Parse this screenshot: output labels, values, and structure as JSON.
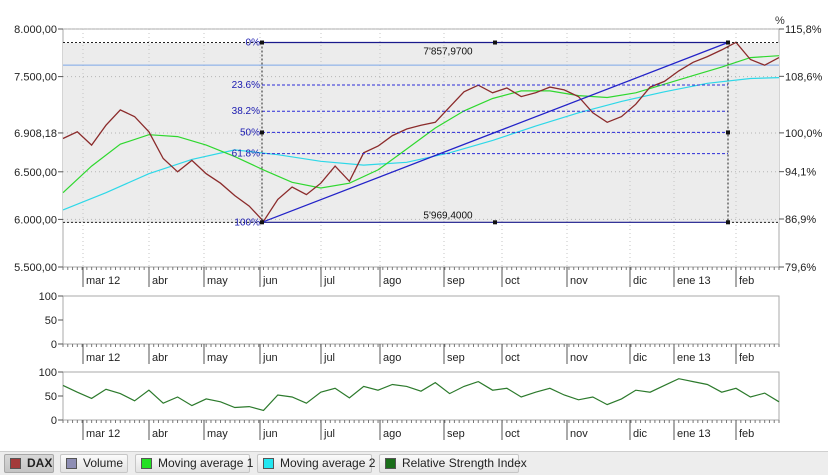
{
  "chart_data": {
    "type": "line",
    "title": "",
    "x_ticks": [
      "mar 12",
      "abr",
      "may",
      "jun",
      "jul",
      "ago",
      "sep",
      "oct",
      "nov",
      "dic",
      "ene 13",
      "feb"
    ],
    "main_panel": {
      "y_left_ticks": [
        "8.000,00",
        "7.500,00",
        "6.908,18",
        "6.500,00",
        "6.000,00",
        "5.500,00"
      ],
      "y_left_values": [
        8000,
        7500,
        6908.18,
        6500,
        6000,
        5500
      ],
      "y_right_unit": "%",
      "y_right_ticks": [
        "115,8%",
        "108,6%",
        "100,0%",
        "94,1%",
        "86,9%",
        "79,6%"
      ],
      "y_right_values": [
        115.8,
        108.6,
        100.0,
        94.1,
        86.9,
        79.6
      ],
      "ylim": [
        5500,
        8000
      ],
      "reference_level": 7620,
      "grid": true,
      "fibonacci": {
        "high_label": "7'857,9700",
        "low_label": "5'969,4000",
        "high": 7857.97,
        "low": 5969.4,
        "levels": [
          {
            "label": "0%",
            "ratio": 0
          },
          {
            "label": "23.6%",
            "ratio": 0.236
          },
          {
            "label": "38.2%",
            "ratio": 0.382
          },
          {
            "label": "50%",
            "ratio": 0.5
          },
          {
            "label": "61.8%",
            "ratio": 0.618
          },
          {
            "label": "100%",
            "ratio": 1.0
          }
        ],
        "trendline": {
          "from": [
            "2012-06-04",
            5969.4
          ],
          "to": [
            "2013-01-25",
            7857.97
          ]
        }
      },
      "series": [
        {
          "name": "DAX",
          "color": "#8b2b2b",
          "t": [
            0,
            2,
            4,
            6,
            8,
            10,
            12,
            14,
            16,
            18,
            20,
            22,
            24,
            26,
            28,
            30,
            32,
            34,
            36,
            38,
            40,
            42,
            44,
            46,
            48,
            50,
            52,
            54,
            56,
            58,
            60,
            62,
            64,
            66,
            68,
            70,
            72,
            74,
            76,
            78,
            80,
            82,
            84,
            86,
            88,
            90,
            92,
            94,
            96,
            98,
            100
          ],
          "y": [
            6850,
            6920,
            6780,
            6990,
            7150,
            7080,
            6920,
            6640,
            6500,
            6620,
            6480,
            6380,
            6250,
            6140,
            5980,
            6210,
            6340,
            6260,
            6380,
            6560,
            6400,
            6700,
            6770,
            6880,
            6950,
            6990,
            7020,
            7180,
            7340,
            7410,
            7330,
            7380,
            7290,
            7330,
            7390,
            7360,
            7290,
            7120,
            7020,
            7080,
            7210,
            7390,
            7450,
            7560,
            7650,
            7710,
            7780,
            7860,
            7680,
            7620,
            7700
          ]
        },
        {
          "name": "Moving average 1",
          "color": "#2fd82f",
          "t": [
            0,
            4,
            8,
            12,
            16,
            20,
            24,
            28,
            32,
            36,
            40,
            44,
            48,
            52,
            56,
            60,
            64,
            68,
            72,
            76,
            80,
            84,
            88,
            92,
            96,
            100
          ],
          "y": [
            6280,
            6560,
            6790,
            6890,
            6870,
            6780,
            6660,
            6520,
            6390,
            6330,
            6380,
            6520,
            6740,
            6960,
            7140,
            7270,
            7350,
            7350,
            7300,
            7280,
            7330,
            7420,
            7510,
            7600,
            7700,
            7720
          ]
        },
        {
          "name": "Moving average 2",
          "color": "#2ed8e8",
          "t": [
            0,
            6,
            12,
            18,
            24,
            30,
            36,
            42,
            48,
            54,
            60,
            66,
            72,
            78,
            84,
            90,
            96,
            100
          ],
          "y": [
            6100,
            6280,
            6480,
            6630,
            6730,
            6680,
            6610,
            6570,
            6600,
            6700,
            6830,
            6980,
            7120,
            7240,
            7340,
            7430,
            7480,
            7490
          ]
        }
      ]
    },
    "volume_panel": {
      "y_ticks": [
        "100",
        "50",
        "0"
      ],
      "y_values": [
        100,
        50,
        0
      ],
      "ylim": [
        0,
        100
      ]
    },
    "rsi_panel": {
      "y_ticks": [
        "100",
        "50",
        "0"
      ],
      "y_values": [
        100,
        50,
        0
      ],
      "ylim": [
        0,
        100
      ],
      "series": [
        {
          "name": "Relative Strength Index",
          "color": "#2c7a2c",
          "t": [
            0,
            2,
            4,
            6,
            8,
            10,
            12,
            14,
            16,
            18,
            20,
            22,
            24,
            26,
            28,
            30,
            32,
            34,
            36,
            38,
            40,
            42,
            44,
            46,
            48,
            50,
            52,
            54,
            56,
            58,
            60,
            62,
            64,
            66,
            68,
            70,
            72,
            74,
            76,
            78,
            80,
            82,
            84,
            86,
            88,
            90,
            92,
            94,
            96,
            98,
            100
          ],
          "y": [
            72,
            58,
            45,
            64,
            55,
            40,
            62,
            35,
            48,
            30,
            44,
            38,
            26,
            28,
            20,
            52,
            48,
            35,
            58,
            66,
            46,
            70,
            62,
            74,
            70,
            60,
            78,
            55,
            70,
            80,
            62,
            66,
            48,
            58,
            66,
            52,
            42,
            48,
            32,
            44,
            62,
            58,
            72,
            86,
            80,
            74,
            58,
            66,
            48,
            56,
            38
          ]
        }
      ]
    }
  },
  "legend": [
    {
      "label": "DAX",
      "color": "#a33a3a",
      "active": true
    },
    {
      "label": "Volume",
      "color": "#8e8eb4",
      "active": false
    },
    {
      "label": "Moving average 1",
      "color": "#22e022",
      "active": false
    },
    {
      "label": "Moving average 2",
      "color": "#22e6f0",
      "active": false
    },
    {
      "label": "Relative Strength Index",
      "color": "#1a6e1a",
      "active": false
    }
  ]
}
